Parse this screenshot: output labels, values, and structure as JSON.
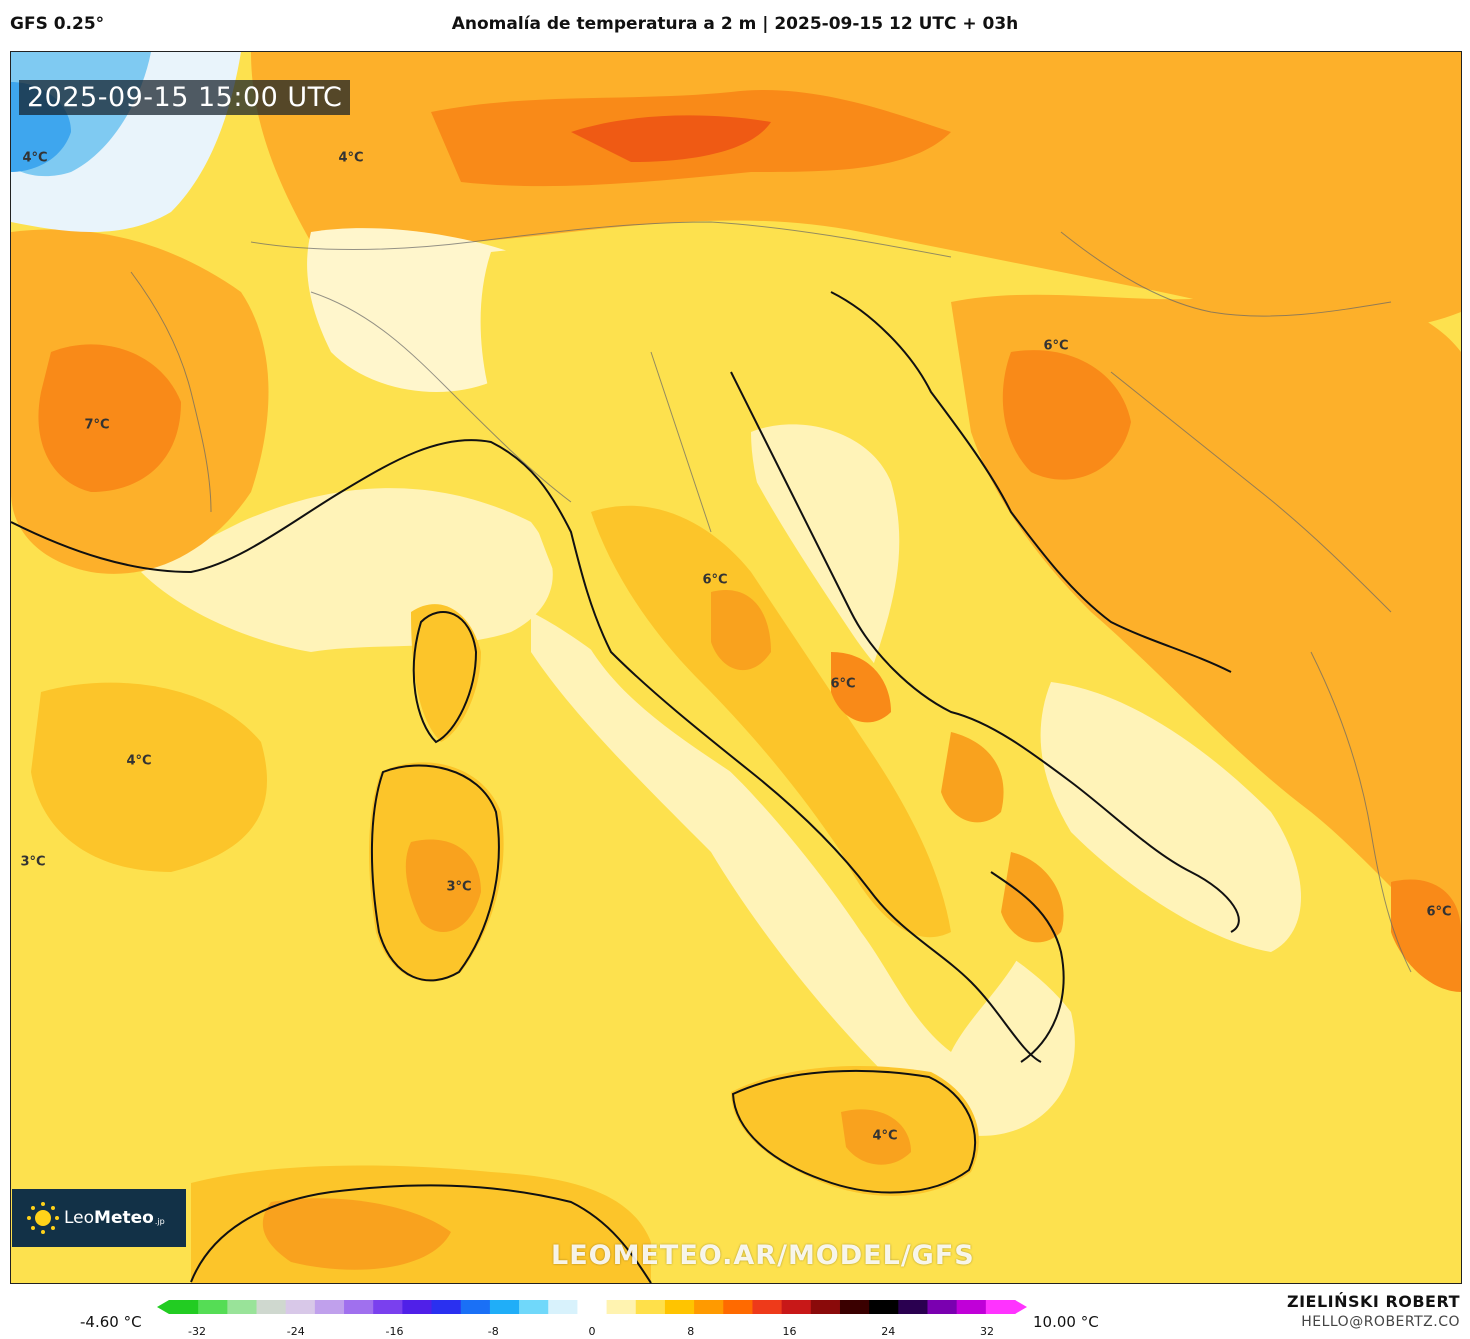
{
  "header": {
    "model": "GFS 0.25°",
    "title": "Anomalía de temperatura a 2 m | 2025-09-15 12 UTC + 03h"
  },
  "map": {
    "timestamp": "2025-09-15 15:00 UTC",
    "watermark": "LEOMETEO.AR/MODEL/GFS",
    "iso_labels": [
      "4°C",
      "4°C",
      "7°C",
      "6°C",
      "6°C",
      "6°C",
      "4°C",
      "3°C",
      "3°C",
      "6°C",
      "4°C"
    ]
  },
  "logo": {
    "name_light": "Leo",
    "name_bold": "Meteo",
    "suffix": ".jp"
  },
  "colorbar": {
    "min_label": "-4.60 °C",
    "max_label": "10.00 °C",
    "ticks": [
      "-32",
      "-24",
      "-16",
      "-8",
      "0",
      "8",
      "16",
      "24",
      "32"
    ],
    "colors": [
      "#22cc22",
      "#55dd55",
      "#99e399",
      "#cfd8cf",
      "#d8c8e8",
      "#c0a0ec",
      "#a070ee",
      "#7a40ee",
      "#5020e8",
      "#2a30f0",
      "#1a70f6",
      "#20aef8",
      "#70d8fa",
      "#d8f2fc",
      "#ffffff",
      "#fff3b0",
      "#ffe04a",
      "#ffc400",
      "#ff9a00",
      "#ff6a00",
      "#ee3a1a",
      "#c81818",
      "#8a0a0a",
      "#3a0000",
      "#000000",
      "#2a0050",
      "#7a00b0",
      "#c000d8",
      "#ff33ff"
    ]
  },
  "credit": {
    "name": "ZIELIŃSKI ROBERT",
    "email": "HELLO@ROBERTZ.CO"
  }
}
